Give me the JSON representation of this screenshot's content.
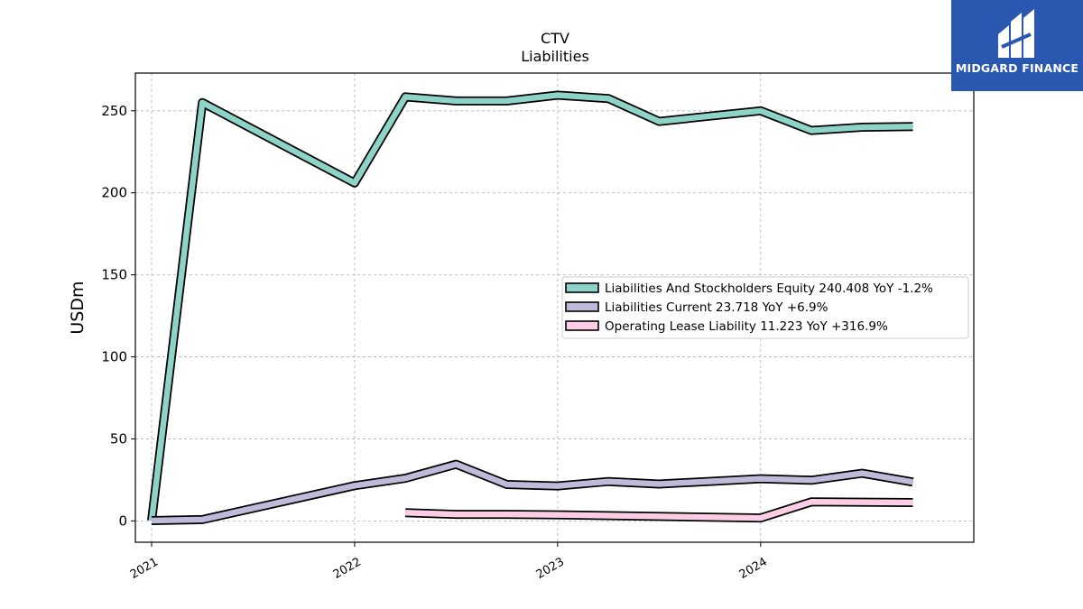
{
  "brand": {
    "name": "MIDGARD FINANCE",
    "background": "#2a58b0"
  },
  "chart_data": {
    "type": "line",
    "title": "CTV",
    "subtitle": "Liabilities",
    "ylabel": "USDm",
    "xlabel": "",
    "ylim": [
      -13,
      273
    ],
    "xlim": [
      2020.92,
      2025.05
    ],
    "yticks": [
      0,
      50,
      100,
      150,
      200,
      250
    ],
    "xticks": [
      {
        "value": 2021,
        "label": "2021"
      },
      {
        "value": 2022,
        "label": "2022"
      },
      {
        "value": 2023,
        "label": "2023"
      },
      {
        "value": 2024,
        "label": "2024"
      }
    ],
    "grid": true,
    "legend_position": "center-right",
    "series": [
      {
        "name": "Liabilities And Stockholders Equity  240.408 YoY -1.2%",
        "color": "#8dd3c7",
        "x": [
          2021.0,
          2021.25,
          2022.0,
          2022.25,
          2022.5,
          2022.75,
          2023.0,
          2023.25,
          2023.5,
          2024.0,
          2024.25,
          2024.5,
          2024.75
        ],
        "y": [
          0.2,
          255,
          206,
          258.5,
          256,
          256,
          259.5,
          257.5,
          243.5,
          250,
          238,
          240,
          240.4
        ]
      },
      {
        "name": "Liabilities Current  23.718 YoY +6.9%",
        "color": "#bebada",
        "x": [
          2021.0,
          2021.25,
          2022.0,
          2022.25,
          2022.5,
          2022.75,
          2023.0,
          2023.25,
          2023.5,
          2024.0,
          2024.25,
          2024.5,
          2024.75
        ],
        "y": [
          0.2,
          0.8,
          21.5,
          26,
          34.5,
          22.2,
          21.3,
          24,
          22.5,
          25.7,
          24.8,
          29,
          23.7
        ]
      },
      {
        "name": "Operating Lease Liability  11.223 YoY +316.9%",
        "color": "#fccde5",
        "x": [
          2022.25,
          2022.5,
          2022.75,
          2023.0,
          2024.0,
          2024.25,
          2024.5,
          2024.75
        ],
        "y": [
          5,
          4,
          4,
          3.7,
          1.8,
          11.6,
          11.4,
          11.2
        ]
      }
    ]
  }
}
